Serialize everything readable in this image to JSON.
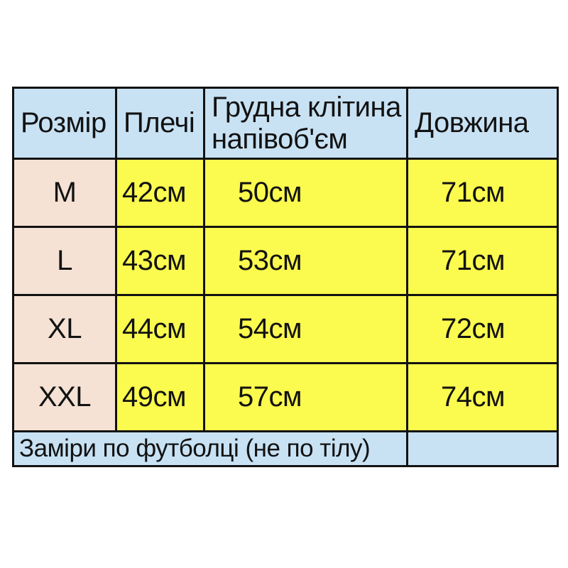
{
  "colors": {
    "header_bg": "#c8e2f4",
    "size_column_bg": "#f5e2d5",
    "value_cells_bg": "#fbfa4e",
    "footer_bg": "#c8e2f4",
    "border": "#121212",
    "text": "#121212",
    "page_bg": "#ffffff"
  },
  "chart_data": {
    "type": "table",
    "title": "",
    "columns": [
      "Розмір",
      "Плечі",
      "Грудна клітина напівоб'єм",
      "Довжина"
    ],
    "rows": [
      [
        "M",
        "42см",
        "50см",
        "71см"
      ],
      [
        "L",
        "43см",
        "53см",
        "71см"
      ],
      [
        "XL",
        "44см",
        "54см",
        "72см"
      ],
      [
        "XXL",
        "49см",
        "57см",
        "74см"
      ]
    ],
    "footer": "Заміри по футболці (не по тілу)",
    "layout_hints": {
      "header_position": "top",
      "footer_spans_columns": 3,
      "grid": "on"
    }
  }
}
